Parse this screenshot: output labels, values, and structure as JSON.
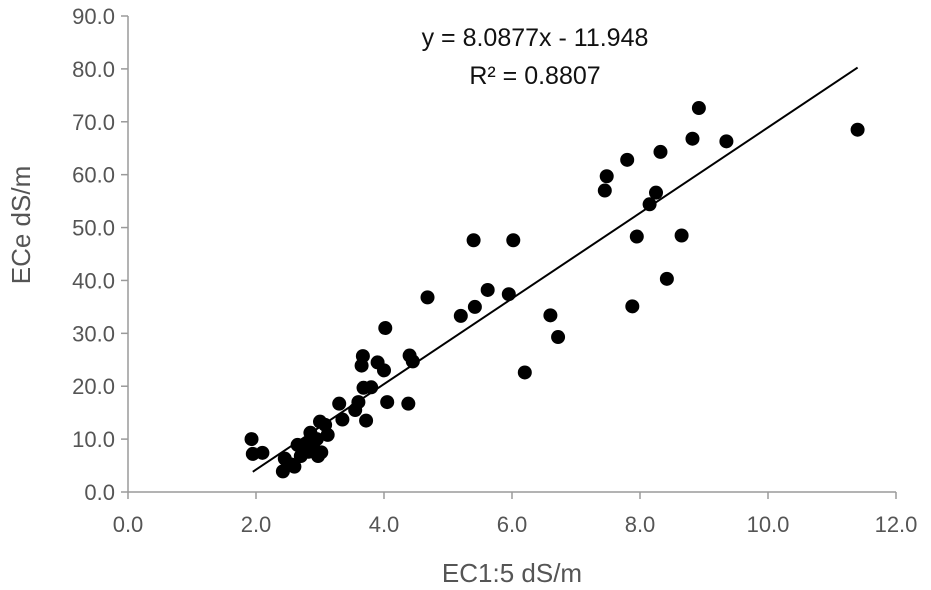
{
  "chart_data": {
    "type": "scatter",
    "title": "",
    "xlabel": "EC1:5 dS/m",
    "ylabel": "ECe dS/m",
    "xlim": [
      0,
      12
    ],
    "ylim": [
      0,
      90
    ],
    "x_ticks": [
      "0.0",
      "2.0",
      "4.0",
      "6.0",
      "8.0",
      "10.0",
      "12.0"
    ],
    "y_ticks": [
      "0.0",
      "10.0",
      "20.0",
      "30.0",
      "40.0",
      "50.0",
      "60.0",
      "70.0",
      "80.0",
      "90.0"
    ],
    "grid": false,
    "legend": "none",
    "marker_color": "#000000",
    "trendline": {
      "type": "linear",
      "slope": 8.0877,
      "intercept": -11.948,
      "x_range": [
        1.95,
        11.4
      ],
      "equation_label": "y = 8.0877x - 11.948",
      "r2_label": "R² = 0.8807",
      "color": "#000000"
    },
    "series": [
      {
        "points": [
          [
            1.93,
            10.0
          ],
          [
            1.95,
            7.2
          ],
          [
            2.1,
            7.4
          ],
          [
            2.42,
            3.9
          ],
          [
            2.45,
            6.3
          ],
          [
            2.55,
            5.2
          ],
          [
            2.6,
            4.8
          ],
          [
            2.65,
            8.9
          ],
          [
            2.7,
            6.8
          ],
          [
            2.8,
            9.3
          ],
          [
            2.82,
            7.6
          ],
          [
            2.85,
            11.2
          ],
          [
            2.9,
            8.3
          ],
          [
            2.95,
            10.0
          ],
          [
            2.97,
            6.8
          ],
          [
            3.0,
            13.3
          ],
          [
            3.02,
            7.5
          ],
          [
            3.08,
            12.7
          ],
          [
            3.12,
            10.8
          ],
          [
            3.3,
            16.7
          ],
          [
            3.35,
            13.7
          ],
          [
            3.55,
            15.5
          ],
          [
            3.6,
            17.0
          ],
          [
            3.65,
            23.9
          ],
          [
            3.67,
            25.7
          ],
          [
            3.68,
            19.7
          ],
          [
            3.72,
            13.5
          ],
          [
            3.8,
            19.8
          ],
          [
            3.9,
            24.5
          ],
          [
            4.0,
            23.0
          ],
          [
            4.02,
            31.0
          ],
          [
            4.05,
            17.0
          ],
          [
            4.38,
            16.7
          ],
          [
            4.4,
            25.8
          ],
          [
            4.45,
            24.7
          ],
          [
            4.68,
            36.8
          ],
          [
            5.2,
            33.3
          ],
          [
            5.4,
            47.6
          ],
          [
            5.42,
            35.0
          ],
          [
            5.62,
            38.2
          ],
          [
            5.95,
            37.4
          ],
          [
            6.02,
            47.6
          ],
          [
            6.2,
            22.6
          ],
          [
            6.6,
            33.4
          ],
          [
            6.72,
            29.3
          ],
          [
            7.45,
            57.0
          ],
          [
            7.48,
            59.7
          ],
          [
            7.8,
            62.8
          ],
          [
            7.88,
            35.1
          ],
          [
            7.95,
            48.3
          ],
          [
            8.15,
            54.4
          ],
          [
            8.25,
            56.6
          ],
          [
            8.32,
            64.3
          ],
          [
            8.42,
            40.3
          ],
          [
            8.65,
            48.5
          ],
          [
            8.82,
            66.8
          ],
          [
            8.92,
            72.6
          ],
          [
            9.35,
            66.3
          ],
          [
            11.4,
            68.5
          ]
        ]
      }
    ]
  }
}
